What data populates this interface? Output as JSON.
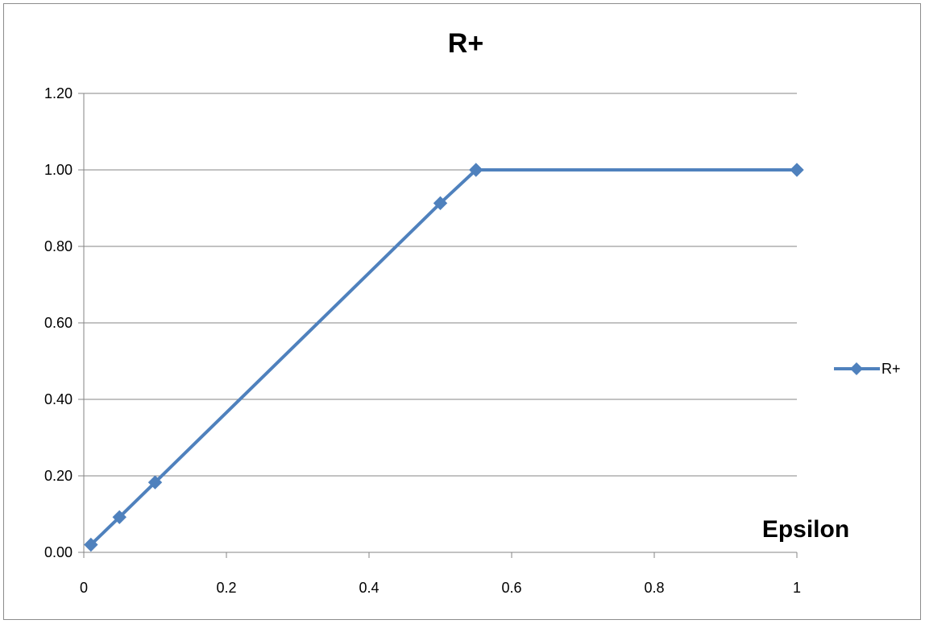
{
  "chart_data": {
    "type": "scatter",
    "title": "R+",
    "xlabel": "Epsilon",
    "ylabel": "",
    "xlim": [
      0,
      1
    ],
    "ylim": [
      0,
      1.2
    ],
    "x_ticks": [
      0,
      0.2,
      0.4,
      0.6,
      0.8,
      1
    ],
    "x_tick_labels": [
      "0",
      "0.2",
      "0.4",
      "0.6",
      "0.8",
      "1"
    ],
    "y_ticks": [
      0,
      0.2,
      0.4,
      0.6,
      0.8,
      1.0,
      1.2
    ],
    "y_tick_labels": [
      "0.00",
      "0.20",
      "0.40",
      "0.60",
      "0.80",
      "1.00",
      "1.20"
    ],
    "grid": "horizontal",
    "legend_position": "right",
    "series": [
      {
        "name": "R+",
        "color": "#4f81bd",
        "marker": "diamond",
        "x": [
          0.01,
          0.05,
          0.1,
          0.5,
          0.55,
          1
        ],
        "y": [
          0.02,
          0.092,
          0.183,
          0.913,
          1.0,
          1.0
        ]
      }
    ]
  }
}
